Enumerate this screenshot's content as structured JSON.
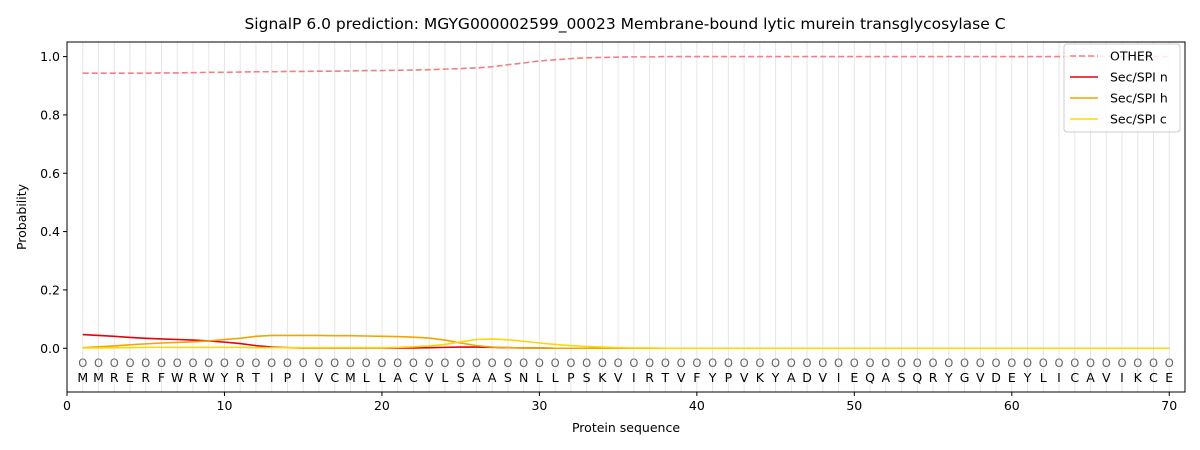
{
  "chart_data": {
    "type": "line",
    "title": "SignalP 6.0 prediction: MGYG000002599_00023 Membrane-bound lytic murein transglycosylase C",
    "xlabel": "Protein sequence",
    "ylabel": "Probability",
    "xlim": [
      0,
      71
    ],
    "ylim": [
      -0.15,
      1.05
    ],
    "x_ticks": [
      0,
      10,
      20,
      30,
      40,
      50,
      60,
      70
    ],
    "y_ticks": [
      0.0,
      0.2,
      0.4,
      0.6,
      0.8,
      1.0
    ],
    "grid": "vertical lines at each residue",
    "legend_position": "top-right",
    "sequence": [
      "M",
      "M",
      "R",
      "E",
      "R",
      "F",
      "W",
      "R",
      "W",
      "Y",
      "R",
      "T",
      "I",
      "P",
      "I",
      "V",
      "C",
      "M",
      "L",
      "L",
      "A",
      "C",
      "V",
      "L",
      "S",
      "A",
      "A",
      "S",
      "N",
      "L",
      "L",
      "P",
      "S",
      "K",
      "V",
      "I",
      "R",
      "T",
      "V",
      "F",
      "Y",
      "P",
      "V",
      "K",
      "Y",
      "A",
      "D",
      "V",
      "I",
      "E",
      "Q",
      "A",
      "S",
      "Q",
      "R",
      "Y",
      "G",
      "V",
      "D",
      "E",
      "Y",
      "L",
      "I",
      "C",
      "A",
      "V",
      "I",
      "K",
      "C",
      "E"
    ],
    "region_labels": [
      "O",
      "O",
      "O",
      "O",
      "O",
      "O",
      "O",
      "O",
      "O",
      "O",
      "O",
      "O",
      "O",
      "O",
      "O",
      "O",
      "O",
      "O",
      "O",
      "O",
      "O",
      "O",
      "O",
      "O",
      "O",
      "O",
      "O",
      "O",
      "O",
      "O",
      "O",
      "O",
      "O",
      "O",
      "O",
      "O",
      "O",
      "O",
      "O",
      "O",
      "O",
      "O",
      "O",
      "O",
      "O",
      "O",
      "O",
      "O",
      "O",
      "O",
      "O",
      "O",
      "O",
      "O",
      "O",
      "O",
      "O",
      "O",
      "O",
      "O",
      "O",
      "O",
      "O",
      "O",
      "O",
      "O",
      "O",
      "O",
      "O",
      "O"
    ],
    "series": [
      {
        "name": "OTHER",
        "color": "#f08080",
        "dash": "dashed",
        "values": [
          0.943,
          0.943,
          0.943,
          0.943,
          0.943,
          0.944,
          0.944,
          0.945,
          0.946,
          0.946,
          0.947,
          0.948,
          0.948,
          0.949,
          0.949,
          0.95,
          0.95,
          0.951,
          0.952,
          0.952,
          0.953,
          0.954,
          0.955,
          0.957,
          0.959,
          0.961,
          0.965,
          0.972,
          0.978,
          0.985,
          0.989,
          0.993,
          0.996,
          0.997,
          0.998,
          0.999,
          0.999,
          1.0,
          1.0,
          1.0,
          1.0,
          1.0,
          1.0,
          1.0,
          1.0,
          1.0,
          1.0,
          1.0,
          1.0,
          1.0,
          1.0,
          1.0,
          1.0,
          1.0,
          1.0,
          1.0,
          1.0,
          1.0,
          1.0,
          1.0,
          1.0,
          1.0,
          1.0,
          1.0,
          1.0,
          1.0,
          1.0,
          1.0,
          1.0,
          1.0
        ]
      },
      {
        "name": "Sec/SPI n",
        "color": "#e8000b",
        "dash": "solid",
        "values": [
          0.047,
          0.044,
          0.041,
          0.037,
          0.034,
          0.032,
          0.03,
          0.028,
          0.025,
          0.021,
          0.016,
          0.009,
          0.004,
          0.002,
          0.001,
          0.001,
          0.001,
          0.001,
          0.001,
          0.001,
          0.001,
          0.001,
          0.002,
          0.003,
          0.004,
          0.004,
          0.003,
          0.002,
          0.001,
          0.001,
          0.0,
          0.0,
          0.0,
          0.0,
          0.0,
          0.0,
          0.0,
          0.0,
          0.0,
          0.0,
          0.0,
          0.0,
          0.0,
          0.0,
          0.0,
          0.0,
          0.0,
          0.0,
          0.0,
          0.0,
          0.0,
          0.0,
          0.0,
          0.0,
          0.0,
          0.0,
          0.0,
          0.0,
          0.0,
          0.0,
          0.0,
          0.0,
          0.0,
          0.0,
          0.0,
          0.0,
          0.0,
          0.0,
          0.0,
          0.0
        ]
      },
      {
        "name": "Sec/SPI h",
        "color": "#f0a500",
        "dash": "solid",
        "values": [
          0.002,
          0.005,
          0.008,
          0.012,
          0.015,
          0.018,
          0.02,
          0.022,
          0.025,
          0.03,
          0.034,
          0.041,
          0.044,
          0.044,
          0.044,
          0.044,
          0.043,
          0.043,
          0.042,
          0.041,
          0.04,
          0.038,
          0.035,
          0.028,
          0.018,
          0.009,
          0.004,
          0.002,
          0.001,
          0.001,
          0.0,
          0.0,
          0.0,
          0.0,
          0.0,
          0.0,
          0.0,
          0.0,
          0.0,
          0.0,
          0.0,
          0.0,
          0.0,
          0.0,
          0.0,
          0.0,
          0.0,
          0.0,
          0.0,
          0.0,
          0.0,
          0.0,
          0.0,
          0.0,
          0.0,
          0.0,
          0.0,
          0.0,
          0.0,
          0.0,
          0.0,
          0.0,
          0.0,
          0.0,
          0.0,
          0.0,
          0.0,
          0.0,
          0.0,
          0.0
        ]
      },
      {
        "name": "Sec/SPI c",
        "color": "#ffd700",
        "dash": "solid",
        "values": [
          0.001,
          0.001,
          0.002,
          0.002,
          0.003,
          0.003,
          0.003,
          0.003,
          0.003,
          0.003,
          0.003,
          0.002,
          0.002,
          0.002,
          0.002,
          0.002,
          0.002,
          0.002,
          0.002,
          0.002,
          0.003,
          0.005,
          0.008,
          0.013,
          0.022,
          0.03,
          0.032,
          0.029,
          0.024,
          0.018,
          0.013,
          0.009,
          0.006,
          0.004,
          0.002,
          0.001,
          0.001,
          0.0,
          0.0,
          0.0,
          0.0,
          0.0,
          0.0,
          0.0,
          0.0,
          0.0,
          0.0,
          0.0,
          0.0,
          0.0,
          0.0,
          0.0,
          0.0,
          0.0,
          0.0,
          0.0,
          0.0,
          0.0,
          0.0,
          0.0,
          0.0,
          0.0,
          0.0,
          0.0,
          0.0,
          0.0,
          0.0,
          0.0,
          0.0,
          0.0
        ]
      }
    ]
  }
}
